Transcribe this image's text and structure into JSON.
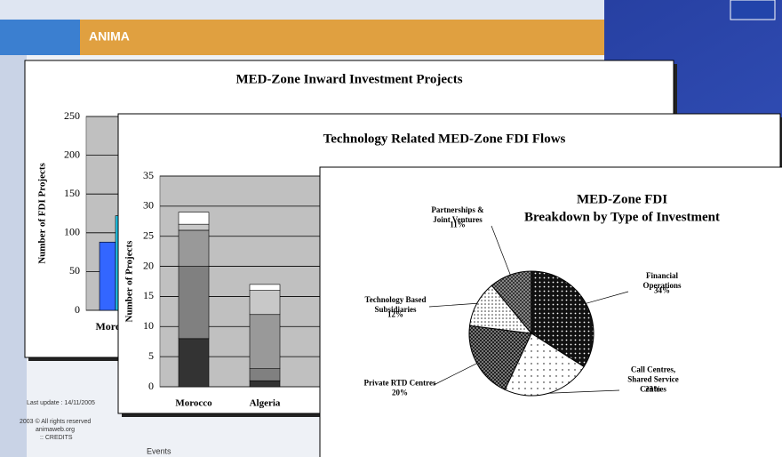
{
  "background": {
    "banner": "ANIMA",
    "footer": [
      "Last update : 14/11/2005",
      "2003 © All rights reserved",
      "animaweb.org",
      ":: CREDITS"
    ],
    "menu": "Events"
  },
  "chart_data": [
    {
      "type": "bar",
      "title": "MED-Zone Inward Investment Projects",
      "y_label": "Number of FDI Projects",
      "categories": [
        "Morocco"
      ],
      "series": [
        {
          "color": "#3366ff",
          "values": [
            88
          ]
        },
        {
          "color": "#22ccf0",
          "values": [
            122
          ]
        }
      ],
      "ylim": [
        0,
        250
      ],
      "yticks": [
        0,
        50,
        100,
        150,
        200,
        250
      ],
      "grid": true
    },
    {
      "type": "stacked-bar",
      "title": "Technology Related MED-Zone FDI Flows",
      "y_label": "Number of Projects",
      "categories": [
        "Morocco",
        "Algeria"
      ],
      "series": [
        {
          "color": "#333333",
          "values": [
            8,
            1
          ]
        },
        {
          "color": "#808080",
          "values": [
            12,
            2
          ]
        },
        {
          "color": "#999999",
          "values": [
            6,
            9
          ]
        },
        {
          "color": "#c8c8c8",
          "values": [
            1,
            4
          ]
        },
        {
          "color": "#ffffff",
          "values": [
            2,
            1
          ]
        }
      ],
      "ylim": [
        0,
        35
      ],
      "yticks": [
        0,
        5,
        10,
        15,
        20,
        25,
        30,
        35
      ],
      "grid": true
    },
    {
      "type": "pie",
      "title": [
        "MED-Zone FDI",
        "Breakdown by Type of Investment"
      ],
      "labels": [
        [
          "Financial",
          "Operations"
        ],
        [
          "Call Centres,",
          "Shared Service",
          "Centres"
        ],
        [
          "Private RTD Centres"
        ],
        [
          "Technology Based",
          "Subsidiaries"
        ],
        [
          "Partnerships &",
          "Joint Ventures"
        ]
      ],
      "values": [
        34,
        23,
        20,
        12,
        11
      ],
      "value_labels": [
        "34%",
        "23%",
        "20%",
        "12%",
        "11%"
      ]
    }
  ]
}
